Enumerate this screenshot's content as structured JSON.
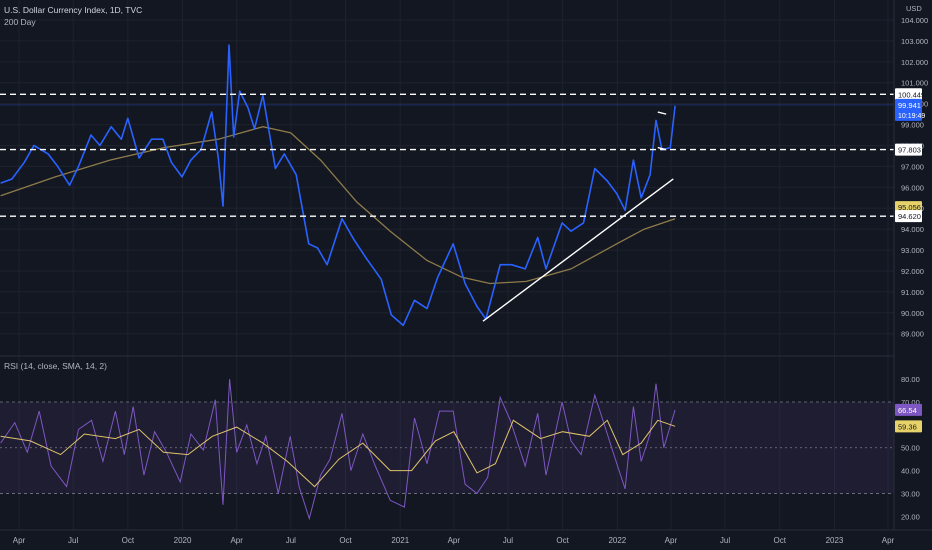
{
  "header": {
    "title": "U.S. Dollar Currency Index, 1D, TVC",
    "ma_label": "200 Day",
    "currency": "USD"
  },
  "rsi_panel": {
    "label": "RSI (14, close, SMA, 14, 2)"
  },
  "price_badges": {
    "last": "99.941",
    "countdown": "10:19:49"
  },
  "colors": {
    "background": "#131722",
    "price_line": "#2962ff",
    "ma_line": "#8d7b4a",
    "rsi_line": "#7e57c2",
    "rsi_ma_line": "#e0c36b",
    "rsi_band": "#7e57c2",
    "horizontal_lines": "#ffffff",
    "trendline": "#ffffff"
  },
  "chart_data": [
    {
      "type": "line",
      "title": "U.S. Dollar Currency Index, 1D, TVC",
      "y_axis": {
        "range": [
          88.7,
          104.0
        ],
        "ticks": [
          "104.000",
          "103.000",
          "102.000",
          "101.000",
          "100.000",
          "99.000",
          "98.000",
          "97.000",
          "96.000",
          "95.000",
          "94.000",
          "93.000",
          "92.000",
          "91.000",
          "90.000",
          "89.000"
        ],
        "tick_values": [
          104,
          103,
          102,
          101,
          100,
          99,
          98,
          97,
          96,
          95,
          94,
          93,
          92,
          91,
          90,
          89
        ],
        "side": "right"
      },
      "x_axis": {
        "labels": [
          "Apr",
          "Jul",
          "Oct",
          "2020",
          "Apr",
          "Jul",
          "Oct",
          "2021",
          "Apr",
          "Jul",
          "Oct",
          "2022",
          "Apr",
          "Jul",
          "Oct",
          "2023",
          "Apr"
        ],
        "dates": [
          "2019-04-01",
          "2019-07-01",
          "2019-10-01",
          "2020-01-01",
          "2020-04-01",
          "2020-07-01",
          "2020-10-01",
          "2021-01-01",
          "2021-04-01",
          "2021-07-01",
          "2021-10-01",
          "2022-01-01",
          "2022-04-01",
          "2022-07-01",
          "2022-10-01",
          "2023-01-01",
          "2023-04-01"
        ]
      },
      "series": [
        {
          "name": "U.S. Dollar Currency Index",
          "points": [
            [
              "2019-03-01",
              96.2
            ],
            [
              "2019-03-20",
              96.4
            ],
            [
              "2019-04-10",
              97.2
            ],
            [
              "2019-04-26",
              98.0
            ],
            [
              "2019-05-20",
              97.6
            ],
            [
              "2019-06-05",
              97.0
            ],
            [
              "2019-06-25",
              96.1
            ],
            [
              "2019-07-10",
              97.0
            ],
            [
              "2019-07-31",
              98.5
            ],
            [
              "2019-08-15",
              98.0
            ],
            [
              "2019-09-03",
              98.9
            ],
            [
              "2019-09-20",
              98.3
            ],
            [
              "2019-10-01",
              99.3
            ],
            [
              "2019-10-20",
              97.4
            ],
            [
              "2019-11-10",
              98.3
            ],
            [
              "2019-11-29",
              98.3
            ],
            [
              "2019-12-13",
              97.2
            ],
            [
              "2019-12-31",
              96.5
            ],
            [
              "2020-01-15",
              97.3
            ],
            [
              "2020-02-01",
              97.8
            ],
            [
              "2020-02-19",
              99.6
            ],
            [
              "2020-03-01",
              97.4
            ],
            [
              "2020-03-09",
              95.1
            ],
            [
              "2020-03-19",
              102.8
            ],
            [
              "2020-03-27",
              98.4
            ],
            [
              "2020-04-06",
              100.6
            ],
            [
              "2020-04-20",
              99.8
            ],
            [
              "2020-05-01",
              98.8
            ],
            [
              "2020-05-15",
              100.4
            ],
            [
              "2020-06-05",
              96.9
            ],
            [
              "2020-06-20",
              97.6
            ],
            [
              "2020-07-10",
              96.6
            ],
            [
              "2020-07-31",
              93.3
            ],
            [
              "2020-08-15",
              93.1
            ],
            [
              "2020-08-31",
              92.3
            ],
            [
              "2020-09-25",
              94.5
            ],
            [
              "2020-10-15",
              93.5
            ],
            [
              "2020-11-05",
              92.6
            ],
            [
              "2020-11-30",
              91.6
            ],
            [
              "2020-12-17",
              89.9
            ],
            [
              "2021-01-06",
              89.4
            ],
            [
              "2021-01-25",
              90.6
            ],
            [
              "2021-02-15",
              90.2
            ],
            [
              "2021-03-05",
              91.7
            ],
            [
              "2021-03-31",
              93.3
            ],
            [
              "2021-04-20",
              91.4
            ],
            [
              "2021-05-10",
              90.3
            ],
            [
              "2021-05-25",
              89.7
            ],
            [
              "2021-06-18",
              92.3
            ],
            [
              "2021-07-07",
              92.3
            ],
            [
              "2021-07-30",
              92.1
            ],
            [
              "2021-08-20",
              93.6
            ],
            [
              "2021-09-03",
              92.1
            ],
            [
              "2021-09-30",
              94.3
            ],
            [
              "2021-10-15",
              93.9
            ],
            [
              "2021-11-05",
              94.3
            ],
            [
              "2021-11-24",
              96.9
            ],
            [
              "2021-12-15",
              96.3
            ],
            [
              "2021-12-31",
              95.7
            ],
            [
              "2022-01-14",
              94.9
            ],
            [
              "2022-01-28",
              97.3
            ],
            [
              "2022-02-10",
              95.5
            ],
            [
              "2022-02-25",
              96.6
            ],
            [
              "2022-03-07",
              99.2
            ],
            [
              "2022-03-17",
              97.8
            ],
            [
              "2022-03-31",
              97.9
            ],
            [
              "2022-04-08",
              99.9
            ]
          ]
        },
        {
          "name": "200 Day",
          "points": [
            [
              "2019-03-01",
              95.6
            ],
            [
              "2019-06-01",
              96.5
            ],
            [
              "2019-09-01",
              97.3
            ],
            [
              "2019-12-01",
              97.9
            ],
            [
              "2020-03-01",
              98.3
            ],
            [
              "2020-05-15",
              98.9
            ],
            [
              "2020-07-01",
              98.6
            ],
            [
              "2020-08-20",
              97.3
            ],
            [
              "2020-10-20",
              95.3
            ],
            [
              "2020-12-15",
              93.9
            ],
            [
              "2021-02-15",
              92.5
            ],
            [
              "2021-04-15",
              91.7
            ],
            [
              "2021-06-01",
              91.4
            ],
            [
              "2021-08-01",
              91.5
            ],
            [
              "2021-10-15",
              92.1
            ],
            [
              "2021-12-31",
              93.3
            ],
            [
              "2022-02-15",
              94.0
            ],
            [
              "2022-04-08",
              94.5
            ]
          ]
        }
      ],
      "annotations": {
        "horizontal_lines": [
          100.449,
          97.803,
          94.62
        ],
        "axis_badges": [
          "100.449",
          "97.803",
          "95.056",
          "94.620"
        ],
        "trendline": [
          [
            "2021-05-20",
            89.6
          ],
          [
            "2022-04-05",
            96.4
          ]
        ],
        "flag_channel": [
          [
            "2022-03-10",
            99.6
          ],
          [
            "2022-03-24",
            99.5
          ],
          [
            "2022-03-10",
            97.9
          ],
          [
            "2022-03-24",
            97.8
          ]
        ]
      }
    },
    {
      "type": "line",
      "title": "RSI (14, close, SMA, 14, 2)",
      "y_axis": {
        "range": [
          14,
          84
        ],
        "ticks": [
          "80.00",
          "70.00",
          "60.00",
          "50.00",
          "40.00",
          "30.00",
          "20.00"
        ],
        "tick_values": [
          80,
          70,
          60,
          50,
          40,
          30,
          20
        ]
      },
      "band": [
        30,
        70
      ],
      "midline": 50,
      "series": [
        {
          "name": "RSI",
          "points": [
            [
              "2019-03-01",
              52
            ],
            [
              "2019-03-25",
              61
            ],
            [
              "2019-04-15",
              48
            ],
            [
              "2019-05-05",
              66
            ],
            [
              "2019-05-25",
              42
            ],
            [
              "2019-06-20",
              33
            ],
            [
              "2019-07-10",
              58
            ],
            [
              "2019-08-01",
              62
            ],
            [
              "2019-08-20",
              44
            ],
            [
              "2019-09-10",
              66
            ],
            [
              "2019-09-25",
              47
            ],
            [
              "2019-10-10",
              68
            ],
            [
              "2019-10-28",
              38
            ],
            [
              "2019-11-15",
              57
            ],
            [
              "2019-12-05",
              48
            ],
            [
              "2019-12-28",
              35
            ],
            [
              "2020-01-15",
              56
            ],
            [
              "2020-02-05",
              49
            ],
            [
              "2020-02-25",
              71
            ],
            [
              "2020-03-09",
              25
            ],
            [
              "2020-03-20",
              80
            ],
            [
              "2020-04-01",
              48
            ],
            [
              "2020-04-18",
              60
            ],
            [
              "2020-05-05",
              43
            ],
            [
              "2020-05-20",
              55
            ],
            [
              "2020-06-10",
              30
            ],
            [
              "2020-06-30",
              55
            ],
            [
              "2020-07-15",
              33
            ],
            [
              "2020-08-01",
              19
            ],
            [
              "2020-08-20",
              38
            ],
            [
              "2020-09-05",
              45
            ],
            [
              "2020-09-25",
              65
            ],
            [
              "2020-10-10",
              40
            ],
            [
              "2020-10-30",
              56
            ],
            [
              "2020-11-20",
              42
            ],
            [
              "2020-12-15",
              27
            ],
            [
              "2021-01-08",
              24
            ],
            [
              "2021-01-25",
              63
            ],
            [
              "2021-02-15",
              43
            ],
            [
              "2021-03-08",
              66
            ],
            [
              "2021-03-31",
              66
            ],
            [
              "2021-04-20",
              34
            ],
            [
              "2021-05-10",
              30
            ],
            [
              "2021-05-28",
              37
            ],
            [
              "2021-06-18",
              72
            ],
            [
              "2021-07-05",
              62
            ],
            [
              "2021-07-30",
              42
            ],
            [
              "2021-08-20",
              65
            ],
            [
              "2021-09-03",
              38
            ],
            [
              "2021-09-30",
              70
            ],
            [
              "2021-10-15",
              53
            ],
            [
              "2021-11-01",
              47
            ],
            [
              "2021-11-24",
              73
            ],
            [
              "2021-12-15",
              56
            ],
            [
              "2021-12-31",
              43
            ],
            [
              "2022-01-14",
              32
            ],
            [
              "2022-01-28",
              68
            ],
            [
              "2022-02-10",
              44
            ],
            [
              "2022-02-25",
              56
            ],
            [
              "2022-03-07",
              78
            ],
            [
              "2022-03-20",
              50
            ],
            [
              "2022-04-08",
              66.54
            ]
          ]
        },
        {
          "name": "RSI-based MA",
          "points": [
            [
              "2019-03-01",
              55
            ],
            [
              "2019-04-20",
              53
            ],
            [
              "2019-06-10",
              47
            ],
            [
              "2019-07-20",
              56
            ],
            [
              "2019-09-10",
              54
            ],
            [
              "2019-10-20",
              58
            ],
            [
              "2019-11-30",
              48
            ],
            [
              "2020-01-10",
              47
            ],
            [
              "2020-02-20",
              55
            ],
            [
              "2020-04-01",
              59
            ],
            [
              "2020-05-15",
              52
            ],
            [
              "2020-06-25",
              44
            ],
            [
              "2020-08-10",
              33
            ],
            [
              "2020-09-20",
              45
            ],
            [
              "2020-10-30",
              52
            ],
            [
              "2020-12-15",
              40
            ],
            [
              "2021-01-20",
              40
            ],
            [
              "2021-03-01",
              53
            ],
            [
              "2021-04-01",
              57
            ],
            [
              "2021-05-10",
              39
            ],
            [
              "2021-06-10",
              43
            ],
            [
              "2021-07-10",
              62
            ],
            [
              "2021-08-25",
              54
            ],
            [
              "2021-10-01",
              57
            ],
            [
              "2021-11-15",
              55
            ],
            [
              "2021-12-15",
              62
            ],
            [
              "2022-01-10",
              47
            ],
            [
              "2022-02-10",
              52
            ],
            [
              "2022-03-10",
              62
            ],
            [
              "2022-04-08",
              59.36
            ]
          ]
        }
      ],
      "axis_badges": [
        "66.54",
        "59.36"
      ]
    }
  ]
}
